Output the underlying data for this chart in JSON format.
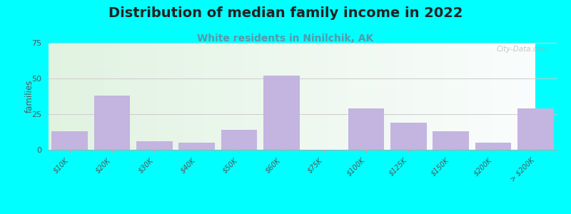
{
  "title": "Distribution of median family income in 2022",
  "subtitle": "White residents in Ninilchik, AK",
  "categories": [
    "$10K",
    "$20K",
    "$30K",
    "$40K",
    "$50K",
    "$60K",
    "$75K",
    "$100K",
    "$125K",
    "$150K",
    "$200K",
    "> $200K"
  ],
  "values": [
    13,
    38,
    6,
    5,
    14,
    52,
    0,
    29,
    19,
    13,
    5,
    29
  ],
  "bar_color": "#c4b4e0",
  "background_color": "#00ffff",
  "ylabel": "families",
  "ylim": [
    0,
    75
  ],
  "yticks": [
    0,
    25,
    50,
    75
  ],
  "title_fontsize": 14,
  "subtitle_fontsize": 10,
  "subtitle_color": "#5599aa",
  "watermark": "City-Data.com",
  "title_color": "#222222"
}
